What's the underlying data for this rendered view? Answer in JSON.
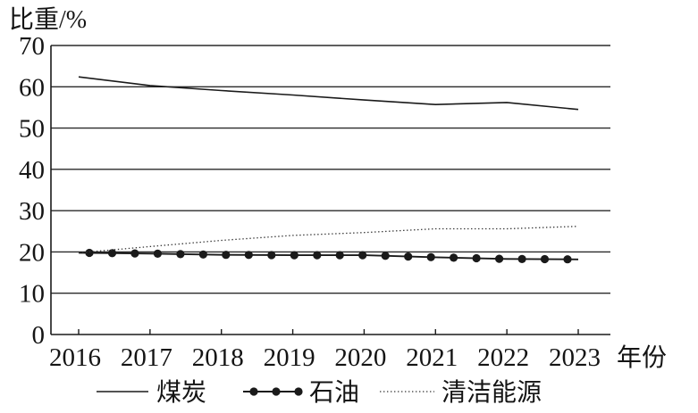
{
  "chart_data": {
    "type": "line",
    "title": "",
    "ylabel": "比重/%",
    "xlabel": "年份",
    "categories": [
      "2016",
      "2017",
      "2018",
      "2019",
      "2020",
      "2021",
      "2022",
      "2023"
    ],
    "yticks": [
      "0",
      "10",
      "20",
      "30",
      "40",
      "50",
      "60",
      "70"
    ],
    "ylim": [
      0,
      70
    ],
    "grid": true,
    "legend_position": "bottom",
    "line_color": "#1a1a1a",
    "series": [
      {
        "name": "煤炭",
        "style": "solid",
        "values": [
          62.4,
          60.3,
          59.1,
          58.0,
          56.8,
          55.7,
          56.2,
          54.5
        ]
      },
      {
        "name": "石油",
        "style": "solid with dot markers",
        "values": [
          19.8,
          19.6,
          19.3,
          19.2,
          19.2,
          18.7,
          18.3,
          18.2
        ]
      },
      {
        "name": "清洁能源",
        "style": "dotted",
        "values": [
          19.8,
          21.3,
          22.8,
          24.0,
          24.7,
          25.6,
          25.6,
          26.2
        ]
      }
    ]
  }
}
